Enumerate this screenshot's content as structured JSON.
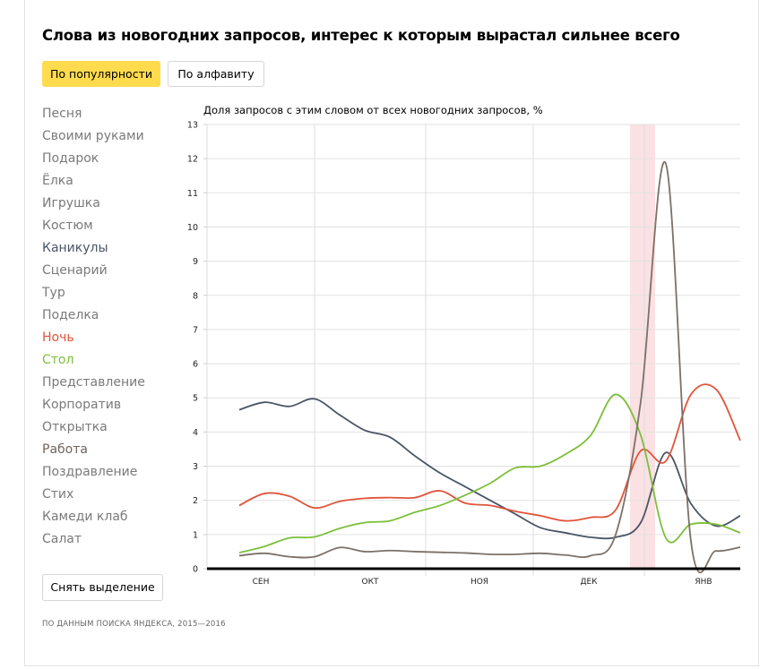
{
  "title": "Слова из новогодних запросов, интерес к которым вырастал сильнее всего",
  "sort_buttons": {
    "popularity": "По популярности",
    "alphabet": "По алфавиту",
    "active": "popularity"
  },
  "words": [
    {
      "label": "Песня",
      "color": "#7a7a7a"
    },
    {
      "label": "Своими руками",
      "color": "#7a7a7a"
    },
    {
      "label": "Подарок",
      "color": "#7a7a7a"
    },
    {
      "label": "Ёлка",
      "color": "#7a7a7a"
    },
    {
      "label": "Игрушка",
      "color": "#7a7a7a"
    },
    {
      "label": "Костюм",
      "color": "#7a7a7a"
    },
    {
      "label": "Каникулы",
      "color": "#4a5565"
    },
    {
      "label": "Сценарий",
      "color": "#7a7a7a"
    },
    {
      "label": "Тур",
      "color": "#7a7a7a"
    },
    {
      "label": "Поделка",
      "color": "#7a7a7a"
    },
    {
      "label": "Ночь",
      "color": "#e0533a"
    },
    {
      "label": "Стол",
      "color": "#7cbf3a"
    },
    {
      "label": "Представление",
      "color": "#7a7a7a"
    },
    {
      "label": "Корпоратив",
      "color": "#7a7a7a"
    },
    {
      "label": "Открытка",
      "color": "#7a7a7a"
    },
    {
      "label": "Работа",
      "color": "#6f645c"
    },
    {
      "label": "Поздравление",
      "color": "#7a7a7a"
    },
    {
      "label": "Стих",
      "color": "#7a7a7a"
    },
    {
      "label": "Камеди клаб",
      "color": "#7a7a7a"
    },
    {
      "label": "Салат",
      "color": "#7a7a7a"
    }
  ],
  "reset_button": "Снять выделение",
  "footer": "ПО ДАННЫМ ПОИСКА ЯНДЕКСА, 2015—2016",
  "chart_data": {
    "type": "line",
    "title": "Доля запросов с этим словом от всех новогодних запросов, %",
    "ylim": [
      0,
      13
    ],
    "yticks": [
      0,
      1,
      2,
      3,
      4,
      5,
      6,
      7,
      8,
      9,
      10,
      11,
      12,
      13
    ],
    "month_labels": [
      "СЕН",
      "ОКТ",
      "НОЯ",
      "ДЕК",
      "ЯНВ"
    ],
    "xlim": [
      "2015-09-01",
      "2016-01-28"
    ],
    "highlight_range": [
      "2015-12-28",
      "2016-01-04"
    ],
    "grid": true,
    "x": [
      "2015-09-10",
      "2015-09-17",
      "2015-09-24",
      "2015-10-01",
      "2015-10-08",
      "2015-10-15",
      "2015-10-22",
      "2015-10-29",
      "2015-11-05",
      "2015-11-12",
      "2015-11-19",
      "2015-11-26",
      "2015-12-03",
      "2015-12-10",
      "2015-12-17",
      "2015-12-24",
      "2015-12-31",
      "2016-01-07",
      "2016-01-14",
      "2016-01-21",
      "2016-01-28"
    ],
    "series": [
      {
        "name": "Каникулы",
        "color": "#4a5565",
        "values": [
          4.65,
          4.87,
          4.75,
          4.97,
          4.5,
          4.05,
          3.85,
          3.3,
          2.8,
          2.4,
          2.0,
          1.6,
          1.2,
          1.05,
          0.92,
          0.92,
          1.35,
          3.4,
          1.9,
          1.25,
          1.55
        ]
      },
      {
        "name": "Ночь",
        "color": "#e0533a",
        "values": [
          1.85,
          2.2,
          2.12,
          1.78,
          1.97,
          2.06,
          2.08,
          2.08,
          2.28,
          1.92,
          1.85,
          1.68,
          1.55,
          1.4,
          1.5,
          1.72,
          3.45,
          3.15,
          5.1,
          5.25,
          3.75
        ]
      },
      {
        "name": "Стол",
        "color": "#7cbf3a",
        "values": [
          0.47,
          0.65,
          0.9,
          0.93,
          1.18,
          1.35,
          1.4,
          1.65,
          1.85,
          2.15,
          2.5,
          2.95,
          3.0,
          3.35,
          3.9,
          5.1,
          3.9,
          0.9,
          1.3,
          1.3,
          1.05
        ]
      },
      {
        "name": "Работа",
        "color": "#7c7068",
        "values": [
          0.38,
          0.45,
          0.35,
          0.35,
          0.62,
          0.5,
          0.53,
          0.5,
          0.48,
          0.46,
          0.42,
          0.42,
          0.45,
          0.4,
          0.38,
          1.0,
          4.9,
          11.85,
          0.8,
          0.52,
          0.63
        ]
      }
    ]
  }
}
